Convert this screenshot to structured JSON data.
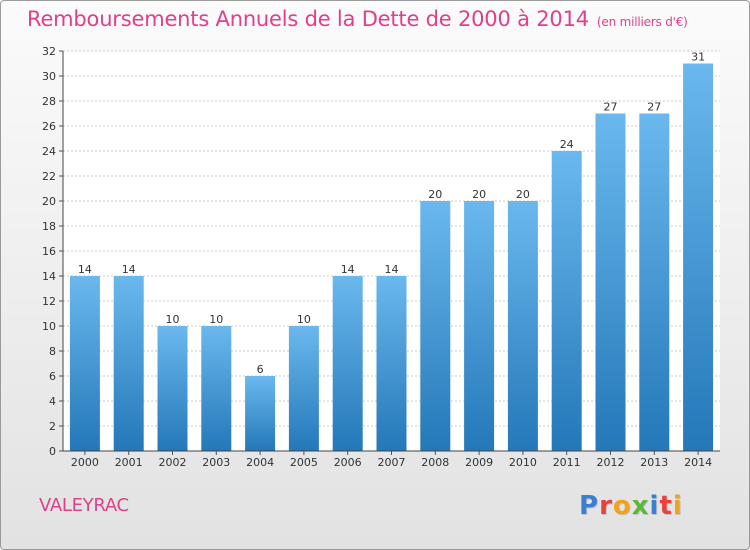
{
  "header": {
    "title": "Remboursements Annuels de la Dette de 2000 à 2014",
    "subtitle": "(en milliers d'€)"
  },
  "footer": {
    "commune": "VALEYRAC",
    "logo_letters": [
      {
        "ch": "P",
        "color": "#3a7fd0"
      },
      {
        "ch": "r",
        "color": "#e8423a"
      },
      {
        "ch": "o",
        "color": "#f2a11c"
      },
      {
        "ch": "x",
        "color": "#5bb83a"
      },
      {
        "ch": "i",
        "color": "#3a7fd0"
      },
      {
        "ch": "t",
        "color": "#e8423a"
      },
      {
        "ch": "i",
        "color": "#f2a11c"
      }
    ]
  },
  "colors": {
    "title": "#e0408a",
    "bar_top": "#6ab8ee",
    "bar_bottom": "#2478b8",
    "grid": "#c8c8c8"
  },
  "chart_data": {
    "type": "bar",
    "categories": [
      "2000",
      "2001",
      "2002",
      "2003",
      "2004",
      "2005",
      "2006",
      "2007",
      "2008",
      "2009",
      "2010",
      "2011",
      "2012",
      "2013",
      "2014"
    ],
    "values": [
      14,
      14,
      10,
      10,
      6,
      10,
      14,
      14,
      20,
      20,
      20,
      24,
      27,
      27,
      31
    ],
    "ylim": [
      0,
      32
    ],
    "yticks": [
      0,
      2,
      4,
      6,
      8,
      10,
      12,
      14,
      16,
      18,
      20,
      22,
      24,
      26,
      28,
      30,
      32
    ],
    "grid": true,
    "data_labels": true
  }
}
